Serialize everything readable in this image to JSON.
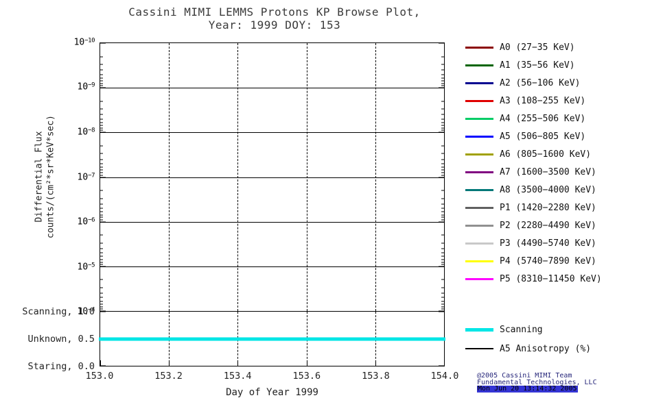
{
  "title": {
    "line1": "Cassini MIMI LEMMS Protons KP Browse Plot,",
    "line2": "Year: 1999 DOY: 153"
  },
  "axes": {
    "xlabel": "Day of Year 1999",
    "ylabel_line1": "Differential Flux",
    "ylabel_line2": "counts/(cm²*sr*KeV*sec)"
  },
  "footer": {
    "line1": "@2005 Cassini MIMI Team",
    "line2": "Fundamental Technologies, LLC",
    "line3": "Mon Jun 20 13:14:32 2005",
    "highlight_color": "#3434d4"
  },
  "chart_data": {
    "type": "line",
    "title": "Cassini MIMI LEMMS Protons KP Browse Plot, Year: 1999 DOY: 153",
    "xlabel": "Day of Year 1999",
    "ylabel": "Differential Flux counts/(cm²*sr*KeV*sec)",
    "x_axis": {
      "min": 153.0,
      "max": 154.0,
      "ticks": [
        "153.0",
        "153.2",
        "153.4",
        "153.6",
        "153.8",
        "154.0"
      ]
    },
    "y_axis": {
      "scale": "log",
      "top": 1e-10,
      "bottom": 0.0001,
      "exponents": [
        -10,
        -9,
        -8,
        -7,
        -6,
        -5,
        -4
      ]
    },
    "grid": {
      "horizontal": "solid",
      "vertical": "dashed"
    },
    "flux_series": [],
    "status_panel": {
      "y_axis": {
        "min": 0.0,
        "max": 1.0
      },
      "ticks": [
        {
          "label": "Scanning, 1.0",
          "value": 1.0
        },
        {
          "label": "Unknown, 0.5",
          "value": 0.5
        },
        {
          "label": "Staring, 0.0",
          "value": 0.0
        }
      ],
      "series": [
        {
          "name": "Scanning",
          "color": "#00e6e6",
          "x": [
            153.0,
            154.0
          ],
          "y": [
            0.5,
            0.5
          ],
          "thickness": 5
        }
      ]
    },
    "legend": {
      "position": "right",
      "entries": [
        {
          "label": "A0 (27−35 KeV)",
          "color": "#8b0000"
        },
        {
          "label": "A1 (35−56 KeV)",
          "color": "#006400"
        },
        {
          "label": "A2 (56−106 KeV)",
          "color": "#000090"
        },
        {
          "label": "A3 (108−255 KeV)",
          "color": "#e00000"
        },
        {
          "label": "A4 (255−506 KeV)",
          "color": "#00cc66"
        },
        {
          "label": "A5 (506−805 KeV)",
          "color": "#0000ff"
        },
        {
          "label": "A6 (805−1600 KeV)",
          "color": "#a0a000"
        },
        {
          "label": "A7 (1600−3500 KeV)",
          "color": "#800080"
        },
        {
          "label": "A8 (3500−4000 KeV)",
          "color": "#007878"
        },
        {
          "label": "P1 (1420−2280 KeV)",
          "color": "#606060"
        },
        {
          "label": "P2 (2280−4490 KeV)",
          "color": "#909090"
        },
        {
          "label": "P3 (4490−5740 KeV)",
          "color": "#c8c8c8"
        },
        {
          "label": "P4 (5740−7890 KeV)",
          "color": "#ffff00"
        },
        {
          "label": "P5 (8310−11450 KeV)",
          "color": "#ff00ff"
        }
      ]
    },
    "legend2": {
      "entries": [
        {
          "label": "Scanning",
          "color": "#00e6e6",
          "thickness": 5
        },
        {
          "label": "A5 Anisotropy (%)",
          "color": "#000000",
          "thickness": 2
        }
      ]
    }
  }
}
